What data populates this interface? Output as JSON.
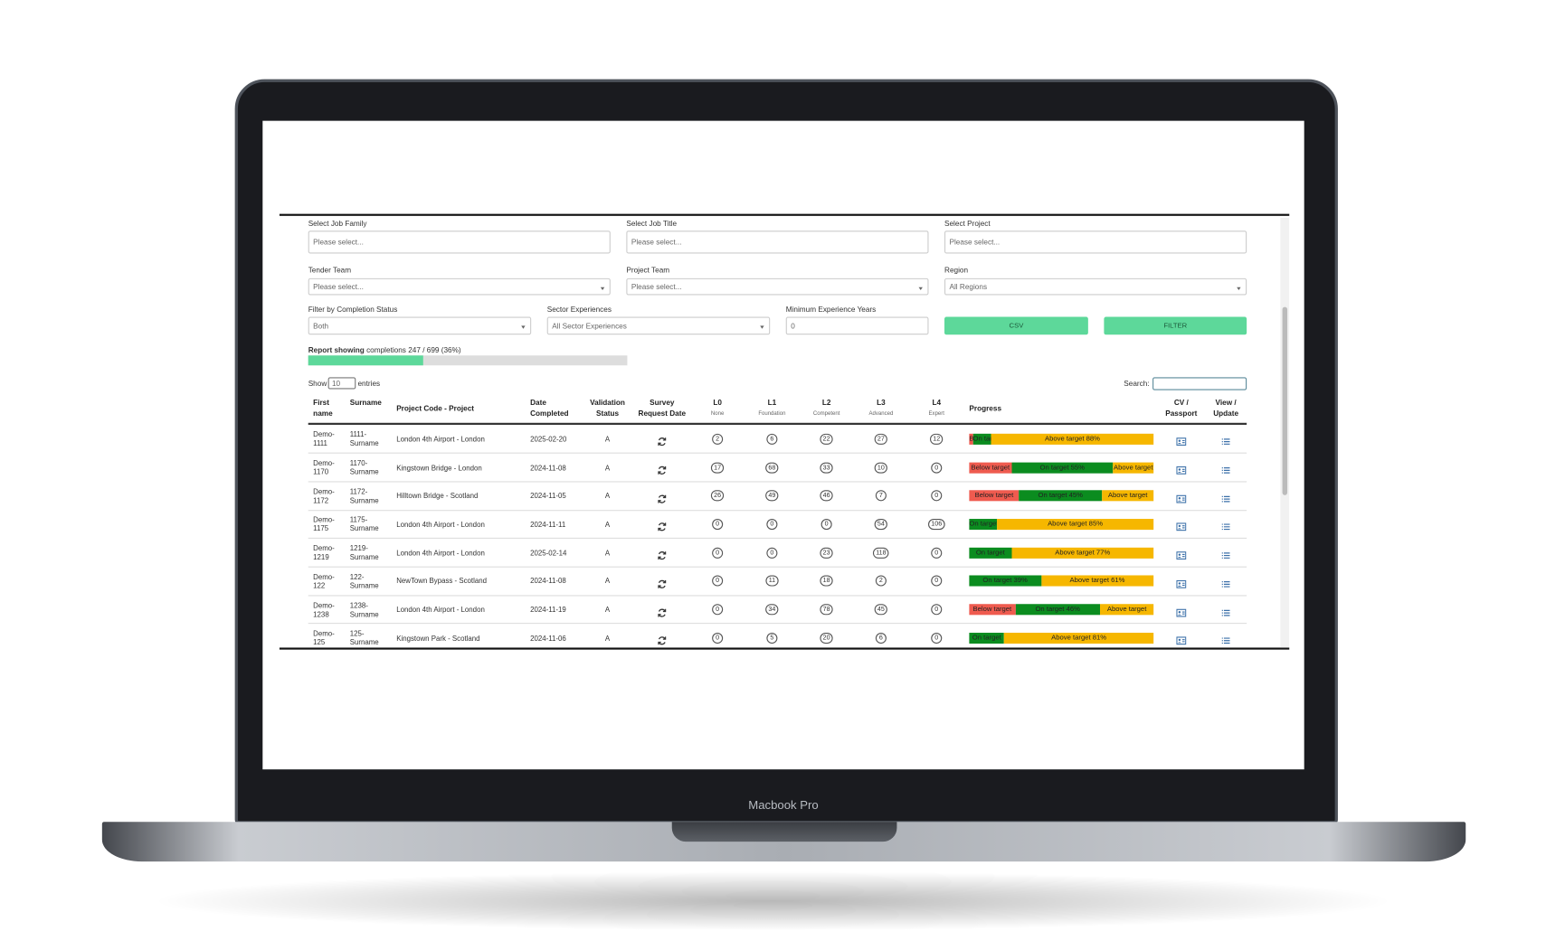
{
  "device_label": "Macbook Pro",
  "filters": [
    {
      "label": "Select Job Family",
      "value": "Please select..."
    },
    {
      "label": "Select Job Title",
      "value": "Please select..."
    },
    {
      "label": "Select Project",
      "value": "Please select..."
    },
    {
      "label": "Tender Team",
      "value": "Please select..."
    },
    {
      "label": "Project Team",
      "value": "Please select..."
    },
    {
      "label": "Region",
      "value": "All Regions"
    },
    {
      "label": "Filter by Completion Status",
      "value": "Both"
    },
    {
      "label": "Sector Experiences",
      "value": "All Sector Experiences"
    },
    {
      "label": "Minimum Experience Years",
      "value": "0"
    }
  ],
  "buttons": [
    "CSV",
    "FILTER"
  ],
  "report": {
    "label": "Report showing",
    "text": "completions 247 / 699 (36%)",
    "percent": 36
  },
  "table": {
    "show": "Show",
    "page_size": "10",
    "entries": "entries",
    "search": "Search:",
    "columns": [
      "First name",
      "Surname",
      "Project Code - Project",
      "Date Completed",
      "Validation Status",
      "Survey Request Date",
      "L0",
      "L1",
      "L2",
      "L3",
      "L4",
      "Progress",
      "CV / Passport",
      "View / Update"
    ],
    "level_notes": [
      "None",
      "Foundation",
      "Competent",
      "Advanced",
      "Expert"
    ],
    "rows": [
      {
        "first": "Demo-1111",
        "surname": "1111-Surname",
        "project": "London 4th Airport - London",
        "date": "2025-02-20",
        "validation": "A",
        "levels": [
          2,
          6,
          22,
          27,
          12
        ],
        "progress": [
          {
            "label": "Below target",
            "value": 2,
            "color": "#ef5b4f"
          },
          {
            "label": "On target",
            "value": 10,
            "color": "#0b8c1f"
          },
          {
            "label": "Above target 88%",
            "value": 88,
            "color": "#f6b700"
          }
        ]
      },
      {
        "first": "Demo-1170",
        "surname": "1170-Surname",
        "project": "Kingstown Bridge - London",
        "date": "2024-11-08",
        "validation": "A",
        "levels": [
          17,
          68,
          33,
          10,
          0
        ],
        "progress": [
          {
            "label": "Below target",
            "value": 23,
            "color": "#ef5b4f"
          },
          {
            "label": "On target 55%",
            "value": 55,
            "color": "#0b8c1f"
          },
          {
            "label": "Above target",
            "value": 22,
            "color": "#f6b700"
          }
        ]
      },
      {
        "first": "Demo-1172",
        "surname": "1172-Surname",
        "project": "Hilltown Bridge - Scotland",
        "date": "2024-11-05",
        "validation": "A",
        "levels": [
          26,
          49,
          46,
          7,
          0
        ],
        "progress": [
          {
            "label": "Below target",
            "value": 27,
            "color": "#ef5b4f"
          },
          {
            "label": "On target 45%",
            "value": 45,
            "color": "#0b8c1f"
          },
          {
            "label": "Above target",
            "value": 28,
            "color": "#f6b700"
          }
        ]
      },
      {
        "first": "Demo-1175",
        "surname": "1175-Surname",
        "project": "London 4th Airport - London",
        "date": "2024-11-11",
        "validation": "A",
        "levels": [
          0,
          0,
          0,
          54,
          106
        ],
        "progress": [
          {
            "label": "On target",
            "value": 15,
            "color": "#0b8c1f"
          },
          {
            "label": "Above target 85%",
            "value": 85,
            "color": "#f6b700"
          }
        ]
      },
      {
        "first": "Demo-1219",
        "surname": "1219-Surname",
        "project": "London 4th Airport - London",
        "date": "2025-02-14",
        "validation": "A",
        "levels": [
          0,
          0,
          23,
          118,
          0
        ],
        "progress": [
          {
            "label": "On target",
            "value": 23,
            "color": "#0b8c1f"
          },
          {
            "label": "Above target 77%",
            "value": 77,
            "color": "#f6b700"
          }
        ]
      },
      {
        "first": "Demo-122",
        "surname": "122-Surname",
        "project": "NewTown Bypass - Scotland",
        "date": "2024-11-08",
        "validation": "A",
        "levels": [
          0,
          11,
          18,
          2,
          0
        ],
        "progress": [
          {
            "label": "On target 39%",
            "value": 39,
            "color": "#0b8c1f"
          },
          {
            "label": "Above target 61%",
            "value": 61,
            "color": "#f6b700"
          }
        ]
      },
      {
        "first": "Demo-1238",
        "surname": "1238-Surname",
        "project": "London 4th Airport - London",
        "date": "2024-11-19",
        "validation": "A",
        "levels": [
          0,
          34,
          78,
          45,
          0
        ],
        "progress": [
          {
            "label": "Below target",
            "value": 25,
            "color": "#ef5b4f"
          },
          {
            "label": "On target 46%",
            "value": 46,
            "color": "#0b8c1f"
          },
          {
            "label": "Above target",
            "value": 29,
            "color": "#f6b700"
          }
        ]
      },
      {
        "first": "Demo-125",
        "surname": "125-Surname",
        "project": "Kingstown Park - Scotland",
        "date": "2024-11-06",
        "validation": "A",
        "levels": [
          0,
          5,
          20,
          6,
          0
        ],
        "progress": [
          {
            "label": "On target",
            "value": 19,
            "color": "#0b8c1f"
          },
          {
            "label": "Above target 81%",
            "value": 81,
            "color": "#f6b700"
          }
        ]
      }
    ]
  }
}
